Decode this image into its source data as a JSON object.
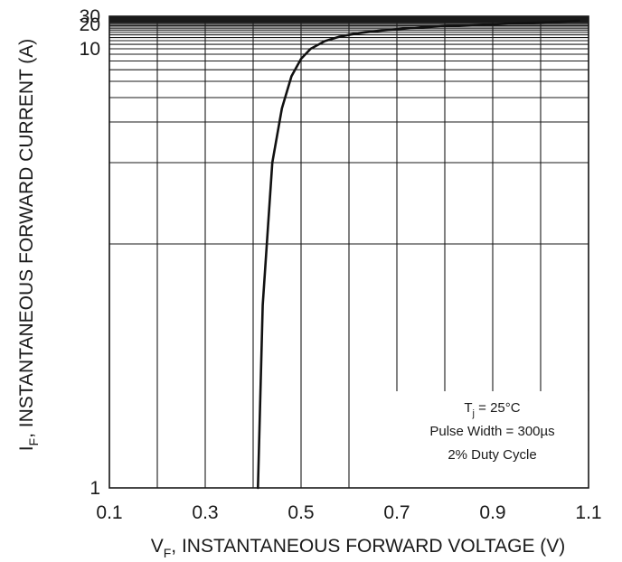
{
  "chart_data": {
    "type": "line",
    "xlabel": {
      "main": "V",
      "sub": "F",
      "rest": ", INSTANTANEOUS FORWARD VOLTAGE (V)"
    },
    "ylabel": {
      "main": "I",
      "sub": "F",
      "rest": ", INSTANTANEOUS FORWARD CURRENT (A)"
    },
    "xlim": [
      0.1,
      1.1
    ],
    "x_ticks": [
      0.1,
      0.3,
      0.5,
      0.7,
      0.9,
      1.1
    ],
    "x_tick_labels": [
      "0.1",
      "0.3",
      "0.5",
      "0.7",
      "0.9",
      "1.1"
    ],
    "x_gridlines": [
      0.1,
      0.2,
      0.3,
      0.4,
      0.5,
      0.6,
      0.7,
      0.8,
      0.9,
      1.0,
      1.1
    ],
    "y_scale": "reciprocal",
    "ylim": [
      1,
      30
    ],
    "y_ticks": [
      1,
      10,
      20,
      30
    ],
    "y_tick_labels": [
      "1",
      "10",
      "20",
      "30"
    ],
    "y_gridlines": [
      1,
      2,
      3,
      4,
      5,
      6,
      7,
      8,
      9,
      10,
      11,
      12,
      13,
      14,
      15,
      16,
      17,
      18,
      19,
      20,
      21,
      22,
      23,
      24,
      25,
      26,
      27,
      28,
      29,
      30
    ],
    "grid": true,
    "series": [
      {
        "name": "",
        "x": [
          0.41,
          0.42,
          0.44,
          0.46,
          0.48,
          0.5,
          0.52,
          0.55,
          0.58,
          0.62,
          0.66,
          0.7,
          0.75,
          0.8,
          0.85,
          0.9,
          0.95,
          1.0,
          1.05,
          1.08
        ],
        "y": [
          1.0,
          1.6,
          3.0,
          4.5,
          6.4,
          8.3,
          10.0,
          11.9,
          13.3,
          14.7,
          15.8,
          16.7,
          17.8,
          18.7,
          19.4,
          20.1,
          20.9,
          21.7,
          22.6,
          23.5
        ]
      }
    ],
    "annotation": {
      "placement": "bottom-right",
      "line1_main": "T",
      "line1_sub": "j",
      "line1_rest": " =  25°C",
      "line2": "Pulse Width =  300µs",
      "line3": "2% Duty Cycle"
    }
  }
}
